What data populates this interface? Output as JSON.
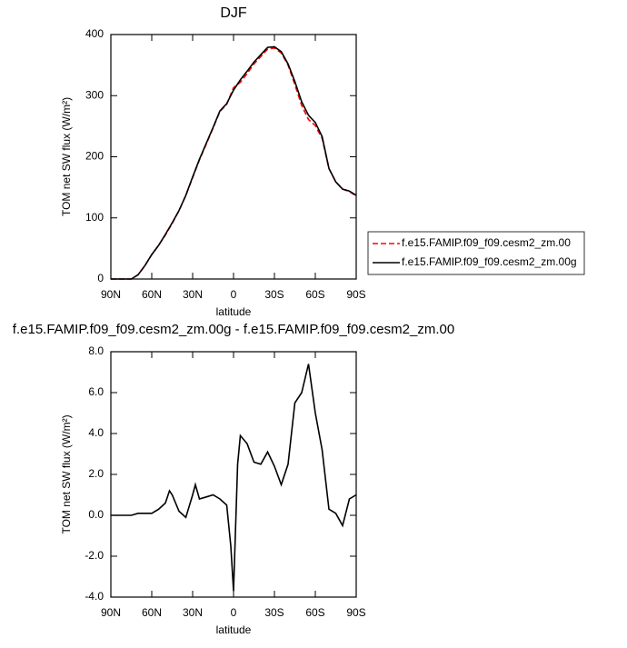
{
  "chart_data": [
    {
      "type": "line",
      "title": "DJF",
      "x_label": "latitude",
      "y_label": "TOM net SW flux (W/m²)",
      "x": [
        90,
        85,
        80,
        75,
        70,
        65,
        60,
        55,
        50,
        45,
        40,
        35,
        30,
        25,
        20,
        15,
        10,
        5,
        0,
        -5,
        -10,
        -15,
        -20,
        -25,
        -30,
        -35,
        -40,
        -45,
        -50,
        -55,
        -60,
        -65,
        -70,
        -75,
        -80,
        -85,
        -90
      ],
      "xlim": [
        90,
        -90
      ],
      "xticks": [
        {
          "value": 90,
          "label": "90N"
        },
        {
          "value": 60,
          "label": "60N"
        },
        {
          "value": 30,
          "label": "30N"
        },
        0,
        {
          "value": -30,
          "label": "30S"
        },
        {
          "value": -60,
          "label": "60S"
        },
        {
          "value": -90,
          "label": "90S"
        }
      ],
      "ylim": [
        0,
        400
      ],
      "yticks": [
        0,
        100,
        200,
        300,
        400
      ],
      "legend": "right",
      "series": [
        {
          "name": "f.e15.FAMIP.f09_f09.cesm2_zm.00",
          "color": "#ff0000",
          "dash": "dashed",
          "values": [
            0,
            0,
            0,
            0,
            7,
            22,
            40,
            55,
            72,
            91,
            112,
            137,
            166,
            195,
            221,
            247,
            274,
            286,
            313,
            322,
            336,
            352,
            364,
            376,
            378,
            370,
            350,
            318,
            284,
            261,
            251,
            230,
            181,
            159,
            147,
            143,
            136
          ]
        },
        {
          "name": "f.e15.FAMIP.f09_f09.cesm2_zm.00g",
          "color": "#000000",
          "dash": "solid",
          "values": [
            0,
            0,
            0,
            0,
            7,
            22,
            40,
            55,
            73,
            92,
            112,
            137,
            167,
            196,
            222,
            248,
            275,
            287,
            309,
            326,
            340,
            355,
            367,
            379,
            380,
            372,
            352,
            323,
            290,
            268,
            256,
            233,
            181,
            159,
            147,
            144,
            137
          ]
        }
      ]
    },
    {
      "type": "line",
      "title": "f.e15.FAMIP.f09_f09.cesm2_zm.00g - f.e15.FAMIP.f09_f09.cesm2_zm.00",
      "x_label": "latitude",
      "y_label": "TOM net SW flux (W/m²)",
      "x": [
        90,
        85,
        80,
        75,
        70,
        65,
        60,
        55,
        50,
        47,
        45,
        40,
        35,
        30,
        28,
        25,
        20,
        15,
        10,
        5,
        2,
        0,
        -3,
        -5,
        -10,
        -15,
        -20,
        -25,
        -30,
        -35,
        -40,
        -45,
        -50,
        -55,
        -60,
        -65,
        -70,
        -75,
        -80,
        -85,
        -90
      ],
      "xlim": [
        90,
        -90
      ],
      "xticks": [
        {
          "value": 90,
          "label": "90N"
        },
        {
          "value": 60,
          "label": "60N"
        },
        {
          "value": 30,
          "label": "30N"
        },
        0,
        {
          "value": -30,
          "label": "30S"
        },
        {
          "value": -60,
          "label": "60S"
        },
        {
          "value": -90,
          "label": "90S"
        }
      ],
      "ylim": [
        -4,
        8
      ],
      "yticks": [
        {
          "value": -4,
          "label": "-4.0"
        },
        {
          "value": -2,
          "label": "-2.0"
        },
        {
          "value": 0,
          "label": "0.0"
        },
        {
          "value": 2,
          "label": "2.0"
        },
        {
          "value": 4,
          "label": "4.0"
        },
        {
          "value": 6,
          "label": "6.0"
        },
        {
          "value": 8,
          "label": "8.0"
        }
      ],
      "color": "#000000",
      "values": [
        0,
        0,
        0,
        0,
        0.1,
        0.1,
        0.1,
        0.3,
        0.6,
        1.2,
        1.0,
        0.2,
        -0.1,
        1.0,
        1.5,
        0.8,
        0.9,
        1.0,
        0.8,
        0.5,
        -1.5,
        -3.7,
        2.5,
        3.9,
        3.5,
        2.6,
        2.5,
        3.1,
        2.4,
        1.5,
        2.5,
        5.5,
        6.0,
        7.4,
        5.0,
        3.2,
        0.3,
        0.1,
        -0.5,
        0.8,
        1.0
      ]
    }
  ]
}
